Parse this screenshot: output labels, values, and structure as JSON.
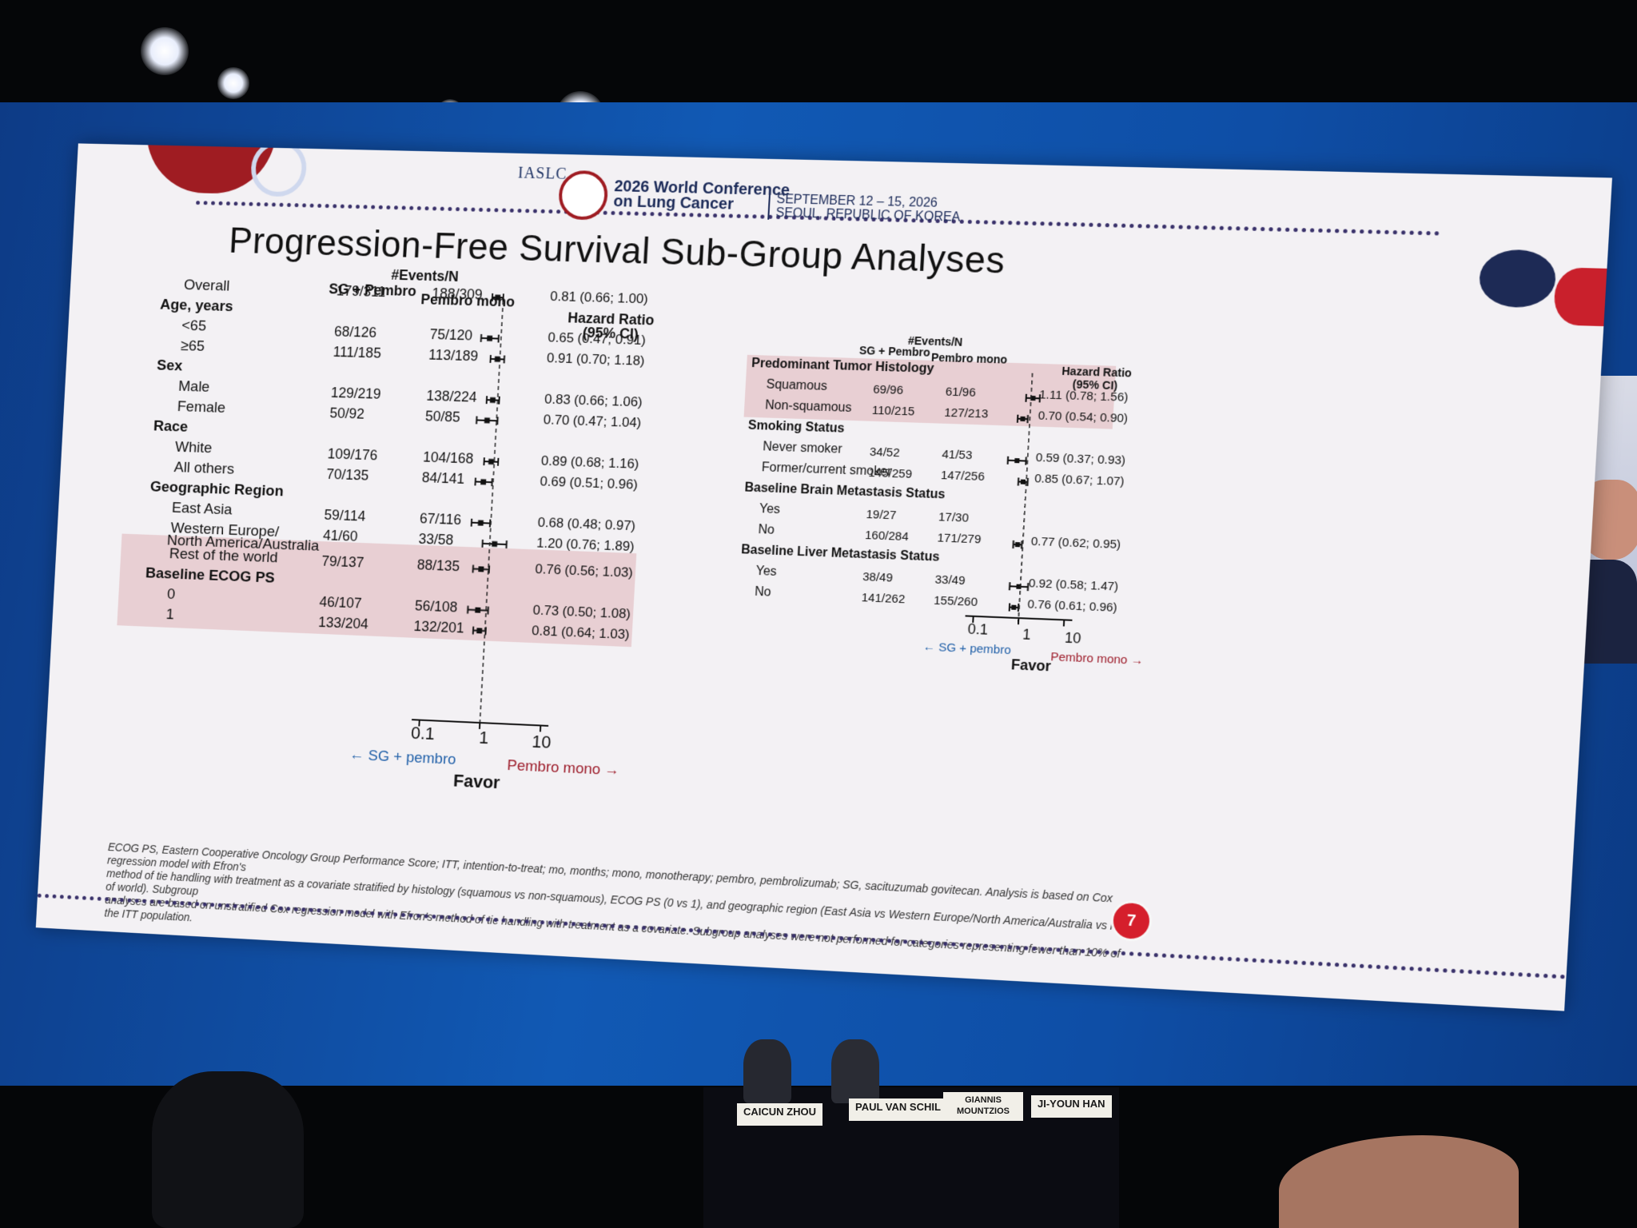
{
  "header": {
    "org": "IASLC",
    "conference_title_line1": "2026 World Conference",
    "conference_title_line2": "on Lung Cancer",
    "date_line1": "SEPTEMBER 12 – 15, 2026",
    "date_line2": "SEOUL, REPUBLIC OF KOREA"
  },
  "slide": {
    "title": "Progression-Free Survival Sub-Group Analyses",
    "page_number": "7",
    "footnote_line1": "ECOG PS, Eastern Cooperative Oncology Group Performance Score; ITT, intention-to-treat; mo, months; mono, monotherapy; pembro, pembrolizumab; SG, sacituzumab govitecan. Analysis is based on Cox regression model with Efron's",
    "footnote_line2": "method of tie handling with treatment as a covariate stratified by histology (squamous vs non-squamous), ECOG PS (0 vs 1), and geographic region (East Asia vs Western Europe/North America/Australia vs rest of world). Subgroup",
    "footnote_line3": "analyses are based on unstratified Cox regression model with Efron's method of tie handling with treatment as a covariate. Subgroup analyses were not performed for categories representing fewer than 10% of the ITT population."
  },
  "panel_names": [
    "CAICUN ZHOU",
    "PAUL VAN SCHIL",
    "GIANNIS MOUNTZIOS",
    "JI-YOUN HAN"
  ],
  "colors": {
    "highlight_band": "#e8cfd3",
    "favor_sg": "#1f5fa8",
    "favor_pembro": "#9d1c2a",
    "frame_blue": "#1159b4"
  },
  "chart_data": [
    {
      "type": "forest",
      "scale": "log",
      "xticks": [
        "0.1",
        "1",
        "10"
      ],
      "reference_line": 1,
      "header_events": "#Events/N",
      "header_col1": "SG + Pembro",
      "header_col2": "Pembro mono",
      "header_hr": "Hazard Ratio",
      "header_hr_ci": "(95% CI)",
      "favor_label": "Favor",
      "favor_left": "SG + pembro",
      "favor_right": "Pembro mono",
      "rows": [
        {
          "label": "Overall",
          "kind": "subgroup",
          "sg": "179/311",
          "pembro": "188/309",
          "hr_text": "0.81 (0.66; 1.00)",
          "hr": 0.81,
          "lo": 0.66,
          "hi": 1.0
        },
        {
          "label": "Age, years",
          "kind": "category"
        },
        {
          "label": "<65",
          "kind": "subgroup",
          "sg": "68/126",
          "pembro": "75/120",
          "hr_text": "0.65 (0.47; 0.91)",
          "hr": 0.65,
          "lo": 0.47,
          "hi": 0.91
        },
        {
          "label": "≥65",
          "kind": "subgroup",
          "sg": "111/185",
          "pembro": "113/189",
          "hr_text": "0.91 (0.70; 1.18)",
          "hr": 0.91,
          "lo": 0.7,
          "hi": 1.18
        },
        {
          "label": "Sex",
          "kind": "category"
        },
        {
          "label": "Male",
          "kind": "subgroup",
          "sg": "129/219",
          "pembro": "138/224",
          "hr_text": "0.83 (0.66; 1.06)",
          "hr": 0.83,
          "lo": 0.66,
          "hi": 1.06
        },
        {
          "label": "Female",
          "kind": "subgroup",
          "sg": "50/92",
          "pembro": "50/85",
          "hr_text": "0.70 (0.47; 1.04)",
          "hr": 0.7,
          "lo": 0.47,
          "hi": 1.04
        },
        {
          "label": "Race",
          "kind": "category"
        },
        {
          "label": "White",
          "kind": "subgroup",
          "sg": "109/176",
          "pembro": "104/168",
          "hr_text": "0.89 (0.68; 1.16)",
          "hr": 0.89,
          "lo": 0.68,
          "hi": 1.16
        },
        {
          "label": "All others",
          "kind": "subgroup",
          "sg": "70/135",
          "pembro": "84/141",
          "hr_text": "0.69 (0.51; 0.96)",
          "hr": 0.69,
          "lo": 0.51,
          "hi": 0.96
        },
        {
          "label": "Geographic Region",
          "kind": "category",
          "highlight": true
        },
        {
          "label": "East Asia",
          "kind": "subgroup",
          "sg": "59/114",
          "pembro": "67/116",
          "hr_text": "0.68 (0.48; 0.97)",
          "hr": 0.68,
          "lo": 0.48,
          "hi": 0.97,
          "highlight": true
        },
        {
          "label": "Western Europe/",
          "label2": "North America/Australia",
          "kind": "subgroup",
          "sg": "41/60",
          "pembro": "33/58",
          "hr_text": "1.20 (0.76; 1.89)",
          "hr": 1.2,
          "lo": 0.76,
          "hi": 1.89,
          "highlight": true
        },
        {
          "label": "Rest of the world",
          "kind": "subgroup",
          "sg": "79/137",
          "pembro": "88/135",
          "hr_text": "0.76 (0.56; 1.03)",
          "hr": 0.76,
          "lo": 0.56,
          "hi": 1.03,
          "highlight": true
        },
        {
          "label": "Baseline ECOG PS",
          "kind": "category"
        },
        {
          "label": "0",
          "kind": "subgroup",
          "sg": "46/107",
          "pembro": "56/108",
          "hr_text": "0.73 (0.50; 1.08)",
          "hr": 0.73,
          "lo": 0.5,
          "hi": 1.08
        },
        {
          "label": "1",
          "kind": "subgroup",
          "sg": "133/204",
          "pembro": "132/201",
          "hr_text": "0.81 (0.64; 1.03)",
          "hr": 0.81,
          "lo": 0.64,
          "hi": 1.03
        }
      ]
    },
    {
      "type": "forest",
      "scale": "log",
      "xticks": [
        "0.1",
        "1",
        "10"
      ],
      "reference_line": 1,
      "header_events": "#Events/N",
      "header_col1": "SG + Pembro",
      "header_col2": "Pembro mono",
      "header_hr": "Hazard Ratio",
      "header_hr_ci": "(95% CI)",
      "favor_label": "Favor",
      "favor_left": "SG + pembro",
      "favor_right": "Pembro mono",
      "rows": [
        {
          "label": "Predominant Tumor Histology",
          "kind": "category",
          "highlight": true
        },
        {
          "label": "Squamous",
          "kind": "subgroup",
          "sg": "69/96",
          "pembro": "61/96",
          "hr_text": "1.11 (0.78; 1.56)",
          "hr": 1.11,
          "lo": 0.78,
          "hi": 1.56,
          "highlight": true
        },
        {
          "label": "Non-squamous",
          "kind": "subgroup",
          "sg": "110/215",
          "pembro": "127/213",
          "hr_text": "0.70 (0.54; 0.90)",
          "hr": 0.7,
          "lo": 0.54,
          "hi": 0.9,
          "highlight": true
        },
        {
          "label": "Smoking Status",
          "kind": "category"
        },
        {
          "label": "Never smoker",
          "kind": "subgroup",
          "sg": "34/52",
          "pembro": "41/53",
          "hr_text": "0.59 (0.37; 0.93)",
          "hr": 0.59,
          "lo": 0.37,
          "hi": 0.93
        },
        {
          "label": "Former/current smoker",
          "kind": "subgroup",
          "sg": "145/259",
          "pembro": "147/256",
          "hr_text": "0.85 (0.67; 1.07)",
          "hr": 0.85,
          "lo": 0.67,
          "hi": 1.07
        },
        {
          "label": "Baseline Brain Metastasis Status",
          "kind": "category"
        },
        {
          "label": "Yes",
          "kind": "subgroup",
          "sg": "19/27",
          "pembro": "17/30",
          "hr_text": "",
          "hr": null
        },
        {
          "label": "No",
          "kind": "subgroup",
          "sg": "160/284",
          "pembro": "171/279",
          "hr_text": "0.77 (0.62; 0.95)",
          "hr": 0.77,
          "lo": 0.62,
          "hi": 0.95
        },
        {
          "label": "Baseline Liver Metastasis Status",
          "kind": "category"
        },
        {
          "label": "Yes",
          "kind": "subgroup",
          "sg": "38/49",
          "pembro": "33/49",
          "hr_text": "0.92 (0.58; 1.47)",
          "hr": 0.92,
          "lo": 0.58,
          "hi": 1.47
        },
        {
          "label": "No",
          "kind": "subgroup",
          "sg": "141/262",
          "pembro": "155/260",
          "hr_text": "0.76 (0.61; 0.96)",
          "hr": 0.76,
          "lo": 0.61,
          "hi": 0.96
        }
      ]
    }
  ]
}
